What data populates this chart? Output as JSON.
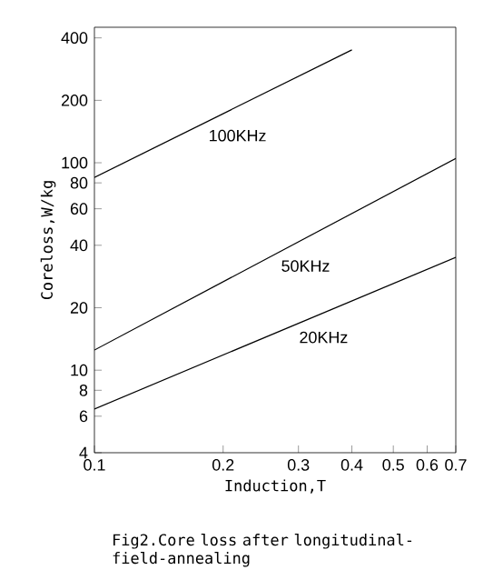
{
  "chart_data": {
    "type": "line",
    "title": "Fig2.Core loss after longitudinal-field-annealing",
    "xlabel": "Induction,T",
    "ylabel": "Coreloss,W/kg",
    "log": "xy",
    "xlim": [
      0.1,
      0.7
    ],
    "ylim": [
      4,
      450
    ],
    "xticks": [
      0.1,
      0.2,
      0.3,
      0.4,
      0.5,
      0.6,
      0.7
    ],
    "yticks": [
      4,
      6,
      8,
      10,
      20,
      40,
      60,
      80,
      100,
      200,
      400
    ],
    "grid": false,
    "legend": false,
    "marker": "none",
    "line_style": "solid",
    "series": [
      {
        "name": "100KHz",
        "color": "#000000",
        "x": [
          0.1,
          0.4
        ],
        "values": [
          85,
          350
        ]
      },
      {
        "name": "50KHz",
        "color": "#000000",
        "x": [
          0.1,
          0.7
        ],
        "values": [
          12.5,
          105
        ]
      },
      {
        "name": "20KHz",
        "color": "#000000",
        "x": [
          0.1,
          0.7
        ],
        "values": [
          6.5,
          35
        ]
      }
    ]
  }
}
